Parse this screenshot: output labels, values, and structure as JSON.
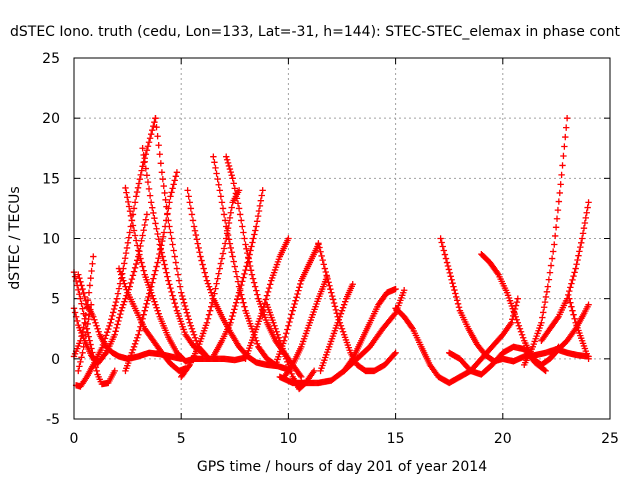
{
  "chart_data": {
    "type": "scatter",
    "title": "dSTEC Iono. truth (cedu, Lon=133, Lat=-31, h=144): STEC-STEC_elemax in phase cont",
    "xlabel": "GPS time / hours of day 201 of year 2014",
    "ylabel": "dSTEC  / TECUs",
    "xlim": [
      0,
      25
    ],
    "ylim": [
      -5,
      25
    ],
    "xticks": [
      0,
      5,
      10,
      15,
      20,
      25
    ],
    "yticks": [
      -5,
      0,
      5,
      10,
      15,
      20,
      25
    ],
    "grid": true,
    "marker": "plus",
    "color": "#ff0000",
    "series": [
      {
        "points": [
          [
            0.0,
            7.2
          ],
          [
            0.3,
            5.0
          ],
          [
            0.6,
            2.5
          ],
          [
            0.9,
            0.2
          ],
          [
            1.1,
            -1.3
          ],
          [
            1.3,
            -2.1
          ],
          [
            1.6,
            -2.0
          ],
          [
            1.9,
            -1.0
          ]
        ]
      },
      {
        "points": [
          [
            0.1,
            -2.2
          ],
          [
            0.3,
            -2.3
          ],
          [
            0.6,
            -1.5
          ],
          [
            0.9,
            -0.5
          ],
          [
            1.3,
            0.9
          ],
          [
            1.7,
            3.0
          ],
          [
            2.0,
            5.0
          ],
          [
            2.3,
            7.5
          ],
          [
            2.6,
            10.5
          ],
          [
            2.9,
            13.5
          ],
          [
            3.2,
            16.0
          ],
          [
            3.5,
            18.0
          ],
          [
            3.8,
            20.0
          ]
        ]
      },
      {
        "points": [
          [
            0.0,
            4.2
          ],
          [
            0.2,
            2.8
          ],
          [
            0.5,
            1.5
          ],
          [
            0.8,
            0.3
          ],
          [
            1.1,
            -0.4
          ],
          [
            1.5,
            0.5
          ],
          [
            1.9,
            2.0
          ],
          [
            2.2,
            4.0
          ],
          [
            2.6,
            6.0
          ],
          [
            3.0,
            8.5
          ],
          [
            3.4,
            12.0
          ]
        ]
      },
      {
        "points": [
          [
            0.0,
            0.2
          ],
          [
            0.3,
            1.5
          ],
          [
            0.5,
            3.0
          ],
          [
            0.7,
            5.5
          ],
          [
            0.9,
            8.5
          ]
        ]
      },
      {
        "points": [
          [
            0.2,
            -1.0
          ],
          [
            0.4,
            0.5
          ],
          [
            0.6,
            2.5
          ],
          [
            0.8,
            4.5
          ]
        ]
      },
      {
        "points": [
          [
            0.2,
            7.0
          ],
          [
            0.4,
            5.8
          ],
          [
            0.6,
            4.5
          ],
          [
            0.9,
            3.5
          ],
          [
            1.2,
            2.0
          ],
          [
            1.5,
            1.0
          ],
          [
            1.8,
            0.5
          ],
          [
            2.1,
            0.2
          ],
          [
            2.5,
            0.0
          ],
          [
            3.0,
            0.2
          ],
          [
            3.5,
            0.5
          ],
          [
            4.0,
            0.4
          ],
          [
            4.5,
            0.2
          ],
          [
            5.0,
            0.0
          ]
        ]
      },
      {
        "points": [
          [
            2.4,
            14.2
          ],
          [
            2.7,
            11.5
          ],
          [
            3.0,
            9.0
          ],
          [
            3.3,
            7.0
          ],
          [
            3.6,
            5.5
          ],
          [
            4.0,
            3.5
          ],
          [
            4.4,
            1.8
          ],
          [
            4.8,
            0.5
          ],
          [
            5.2,
            -0.2
          ],
          [
            5.6,
            0.0
          ],
          [
            6.0,
            0.0
          ],
          [
            6.5,
            0.0
          ],
          [
            7.0,
            0.0
          ],
          [
            7.5,
            -0.1
          ],
          [
            8.0,
            0.1
          ]
        ]
      },
      {
        "points": [
          [
            3.2,
            17.5
          ],
          [
            3.6,
            13.0
          ],
          [
            4.0,
            9.5
          ],
          [
            4.4,
            6.5
          ],
          [
            4.8,
            4.0
          ],
          [
            5.2,
            2.0
          ],
          [
            5.6,
            1.0
          ],
          [
            6.0,
            0.5
          ]
        ]
      },
      {
        "points": [
          [
            3.8,
            20.0
          ],
          [
            4.1,
            15.5
          ],
          [
            4.4,
            11.5
          ],
          [
            4.7,
            8.5
          ],
          [
            5.0,
            5.5
          ],
          [
            5.4,
            3.0
          ],
          [
            5.8,
            1.0
          ],
          [
            6.2,
            0.2
          ]
        ]
      },
      {
        "points": [
          [
            2.1,
            7.5
          ],
          [
            2.5,
            5.5
          ],
          [
            2.9,
            4.0
          ],
          [
            3.3,
            2.5
          ],
          [
            3.7,
            1.5
          ],
          [
            4.1,
            0.5
          ],
          [
            4.5,
            -0.4
          ],
          [
            4.9,
            -1.0
          ],
          [
            5.2,
            -0.8
          ]
        ]
      },
      {
        "points": [
          [
            2.4,
            -1.0
          ],
          [
            2.7,
            0.5
          ],
          [
            3.0,
            2.0
          ],
          [
            3.3,
            4.0
          ],
          [
            3.6,
            6.0
          ],
          [
            3.9,
            8.0
          ],
          [
            4.2,
            10.5
          ],
          [
            4.5,
            13.5
          ],
          [
            4.8,
            15.5
          ]
        ]
      },
      {
        "points": [
          [
            5.0,
            -1.5
          ],
          [
            5.4,
            -0.5
          ],
          [
            5.8,
            1.0
          ],
          [
            6.2,
            3.0
          ],
          [
            6.5,
            5.0
          ],
          [
            6.8,
            7.5
          ],
          [
            7.1,
            10.0
          ],
          [
            7.4,
            13.0
          ],
          [
            7.7,
            14.0
          ]
        ]
      },
      {
        "points": [
          [
            5.3,
            14.0
          ],
          [
            5.6,
            11.0
          ],
          [
            5.9,
            8.5
          ],
          [
            6.2,
            6.5
          ],
          [
            6.5,
            5.0
          ],
          [
            6.9,
            3.5
          ],
          [
            7.3,
            2.2
          ],
          [
            7.7,
            1.0
          ],
          [
            8.1,
            0.2
          ],
          [
            8.5,
            -0.3
          ],
          [
            9.0,
            -0.5
          ],
          [
            9.5,
            -0.6
          ],
          [
            10.0,
            -0.9
          ]
        ]
      },
      {
        "points": [
          [
            6.5,
            16.8
          ],
          [
            6.8,
            14.0
          ],
          [
            7.1,
            11.0
          ],
          [
            7.4,
            8.5
          ],
          [
            7.7,
            6.0
          ],
          [
            8.0,
            4.0
          ],
          [
            8.3,
            2.5
          ],
          [
            8.6,
            1.0
          ],
          [
            9.0,
            0.0
          ],
          [
            9.4,
            -0.5
          ]
        ]
      },
      {
        "points": [
          [
            7.1,
            16.8
          ],
          [
            7.4,
            15.0
          ],
          [
            7.7,
            12.5
          ],
          [
            8.0,
            9.5
          ],
          [
            8.3,
            7.0
          ],
          [
            8.6,
            5.0
          ],
          [
            9.0,
            3.0
          ],
          [
            9.4,
            1.5
          ],
          [
            9.8,
            0.5
          ],
          [
            10.2,
            -0.5
          ],
          [
            10.6,
            -1.5
          ]
        ]
      },
      {
        "points": [
          [
            6.5,
            0.2
          ],
          [
            6.9,
            1.5
          ],
          [
            7.3,
            3.0
          ],
          [
            7.7,
            5.5
          ],
          [
            8.1,
            8.0
          ],
          [
            8.5,
            11.0
          ],
          [
            8.8,
            14.0
          ]
        ]
      },
      {
        "points": [
          [
            8.0,
            0.0
          ],
          [
            8.4,
            2.0
          ],
          [
            8.8,
            4.0
          ],
          [
            9.2,
            6.5
          ],
          [
            9.6,
            8.5
          ],
          [
            10.0,
            10.0
          ]
        ]
      },
      {
        "points": [
          [
            9.0,
            4.5
          ],
          [
            9.3,
            3.0
          ],
          [
            9.6,
            1.5
          ],
          [
            9.9,
            0.0
          ],
          [
            10.2,
            -1.5
          ],
          [
            10.5,
            -2.5
          ],
          [
            10.8,
            -2.0
          ],
          [
            11.2,
            -1.0
          ]
        ]
      },
      {
        "points": [
          [
            9.4,
            -0.5
          ],
          [
            9.8,
            1.5
          ],
          [
            10.2,
            4.0
          ],
          [
            10.6,
            6.5
          ],
          [
            11.0,
            8.0
          ],
          [
            11.4,
            9.5
          ]
        ]
      },
      {
        "points": [
          [
            9.8,
            -1.5
          ],
          [
            10.2,
            -0.5
          ],
          [
            10.6,
            1.0
          ],
          [
            11.0,
            3.0
          ],
          [
            11.4,
            5.0
          ],
          [
            11.8,
            6.8
          ]
        ]
      },
      {
        "points": [
          [
            11.4,
            9.6
          ],
          [
            11.7,
            7.5
          ],
          [
            12.0,
            5.5
          ],
          [
            12.3,
            3.5
          ],
          [
            12.6,
            2.0
          ],
          [
            12.9,
            0.5
          ],
          [
            13.2,
            -0.5
          ],
          [
            13.6,
            -1.0
          ],
          [
            14.0,
            -1.0
          ],
          [
            14.5,
            -0.5
          ],
          [
            15.0,
            0.5
          ]
        ]
      },
      {
        "points": [
          [
            9.6,
            -1.5
          ],
          [
            10.2,
            -2.0
          ],
          [
            10.8,
            -2.0
          ],
          [
            11.4,
            -2.0
          ],
          [
            12.0,
            -1.8
          ],
          [
            12.6,
            -1.0
          ],
          [
            13.2,
            0.0
          ],
          [
            13.8,
            1.0
          ],
          [
            14.4,
            2.5
          ],
          [
            15.0,
            3.8
          ],
          [
            15.4,
            5.7
          ]
        ]
      },
      {
        "points": [
          [
            11.5,
            -1.0
          ],
          [
            11.9,
            1.0
          ],
          [
            12.3,
            3.0
          ],
          [
            12.7,
            5.0
          ],
          [
            13.0,
            6.2
          ]
        ]
      },
      {
        "points": [
          [
            12.6,
            -1.0
          ],
          [
            13.0,
            0.0
          ],
          [
            13.4,
            1.5
          ],
          [
            13.8,
            3.0
          ],
          [
            14.2,
            4.5
          ],
          [
            14.6,
            5.5
          ],
          [
            15.0,
            5.8
          ]
        ]
      },
      {
        "points": [
          [
            15.0,
            4.2
          ],
          [
            15.4,
            3.5
          ],
          [
            15.8,
            2.5
          ],
          [
            16.2,
            1.0
          ],
          [
            16.6,
            -0.5
          ],
          [
            17.0,
            -1.5
          ],
          [
            17.5,
            -2.0
          ],
          [
            18.0,
            -1.5
          ],
          [
            18.5,
            -1.0
          ],
          [
            19.0,
            0.0
          ],
          [
            19.5,
            1.0
          ],
          [
            20.0,
            2.0
          ],
          [
            20.4,
            3.0
          ],
          [
            20.7,
            5.0
          ]
        ]
      },
      {
        "points": [
          [
            17.1,
            10.0
          ],
          [
            17.4,
            8.0
          ],
          [
            17.7,
            6.0
          ],
          [
            18.0,
            4.0
          ],
          [
            18.4,
            2.5
          ],
          [
            18.8,
            1.2
          ],
          [
            19.2,
            0.3
          ],
          [
            19.6,
            -0.2
          ],
          [
            20.0,
            0.0
          ],
          [
            20.5,
            -0.2
          ],
          [
            21.0,
            0.2
          ],
          [
            21.5,
            0.3
          ],
          [
            22.0,
            0.5
          ],
          [
            22.5,
            0.8
          ],
          [
            23.0,
            0.5
          ],
          [
            23.5,
            0.3
          ],
          [
            24.0,
            0.2
          ]
        ]
      },
      {
        "points": [
          [
            17.5,
            0.5
          ],
          [
            18.0,
            0.0
          ],
          [
            18.5,
            -1.0
          ],
          [
            19.0,
            -1.3
          ],
          [
            19.5,
            -0.5
          ],
          [
            20.0,
            0.5
          ],
          [
            20.5,
            1.0
          ],
          [
            21.0,
            0.8
          ],
          [
            21.5,
            -0.3
          ],
          [
            22.0,
            -1.0
          ]
        ]
      },
      {
        "points": [
          [
            19.0,
            8.7
          ],
          [
            19.4,
            8.0
          ],
          [
            19.8,
            7.0
          ],
          [
            20.2,
            5.5
          ],
          [
            20.6,
            3.5
          ],
          [
            21.0,
            1.5
          ],
          [
            21.4,
            0.0
          ],
          [
            21.8,
            -0.5
          ],
          [
            22.2,
            0.0
          ],
          [
            22.6,
            1.0
          ]
        ]
      },
      {
        "points": [
          [
            21.0,
            -0.5
          ],
          [
            21.4,
            1.0
          ],
          [
            21.8,
            3.0
          ],
          [
            22.1,
            6.0
          ],
          [
            22.4,
            9.5
          ],
          [
            22.7,
            14.5
          ],
          [
            23.0,
            20.0
          ]
        ]
      },
      {
        "points": [
          [
            21.8,
            1.5
          ],
          [
            22.2,
            2.5
          ],
          [
            22.6,
            3.5
          ],
          [
            23.0,
            5.0
          ],
          [
            23.4,
            7.5
          ],
          [
            23.7,
            10.0
          ],
          [
            24.0,
            13.0
          ]
        ]
      },
      {
        "points": [
          [
            22.2,
            0.0
          ],
          [
            22.6,
            0.8
          ],
          [
            23.0,
            1.5
          ],
          [
            23.4,
            2.5
          ],
          [
            23.8,
            3.8
          ],
          [
            24.0,
            4.5
          ]
        ]
      },
      {
        "points": [
          [
            23.1,
            5.0
          ],
          [
            23.4,
            3.0
          ],
          [
            23.7,
            1.5
          ],
          [
            24.0,
            0.0
          ]
        ]
      }
    ]
  }
}
